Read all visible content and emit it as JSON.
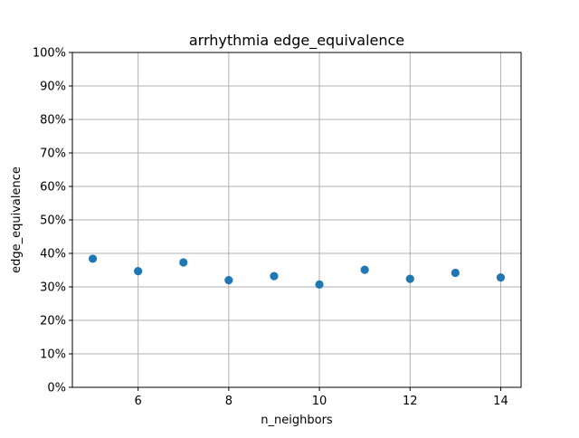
{
  "chart_data": {
    "type": "scatter",
    "title": "arrhythmia edge_equivalence",
    "xlabel": "n_neighbors",
    "ylabel": "edge_equivalence",
    "x": [
      5,
      6,
      7,
      8,
      9,
      10,
      11,
      12,
      13,
      14
    ],
    "y": [
      0.384,
      0.347,
      0.373,
      0.32,
      0.332,
      0.307,
      0.351,
      0.324,
      0.342,
      0.328
    ],
    "xlim": [
      4.55,
      14.45
    ],
    "ylim": [
      0,
      1
    ],
    "x_ticks": [
      6,
      8,
      10,
      12,
      14
    ],
    "x_tick_labels": [
      "6",
      "8",
      "10",
      "12",
      "14"
    ],
    "y_ticks": [
      0,
      0.1,
      0.2,
      0.3,
      0.4,
      0.5,
      0.6,
      0.7,
      0.8,
      0.9,
      1.0
    ],
    "y_tick_labels": [
      "0%",
      "10%",
      "20%",
      "30%",
      "40%",
      "50%",
      "60%",
      "70%",
      "80%",
      "90%",
      "100%"
    ],
    "grid": true,
    "marker_color": "#1f77b4"
  }
}
